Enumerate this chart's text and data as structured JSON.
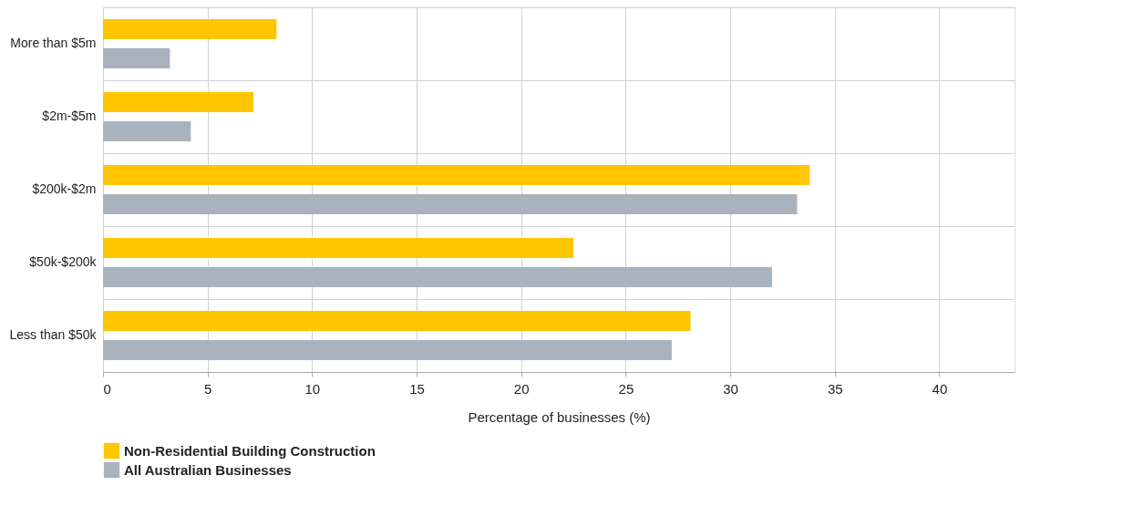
{
  "chart_data": {
    "type": "bar",
    "orientation": "horizontal",
    "xlabel": "Percentage of businesses (%)",
    "categories": [
      "More than $5m",
      "$2m-$5m",
      "$200k-$2m",
      "$50k-$200k",
      "Less than $50k"
    ],
    "series": [
      {
        "name": "Non-Residential Building Construction",
        "color": "#ffc600",
        "values": [
          8.3,
          7.2,
          33.8,
          22.5,
          28.1
        ]
      },
      {
        "name": "All Australian Businesses",
        "color": "#a9b3be",
        "values": [
          3.2,
          4.2,
          33.2,
          32.0,
          27.2
        ]
      }
    ],
    "xlim": [
      0,
      43.6
    ],
    "xticks": [
      0,
      5,
      10,
      15,
      20,
      25,
      30,
      35,
      40
    ],
    "grid": true,
    "legend": "bottom left"
  }
}
